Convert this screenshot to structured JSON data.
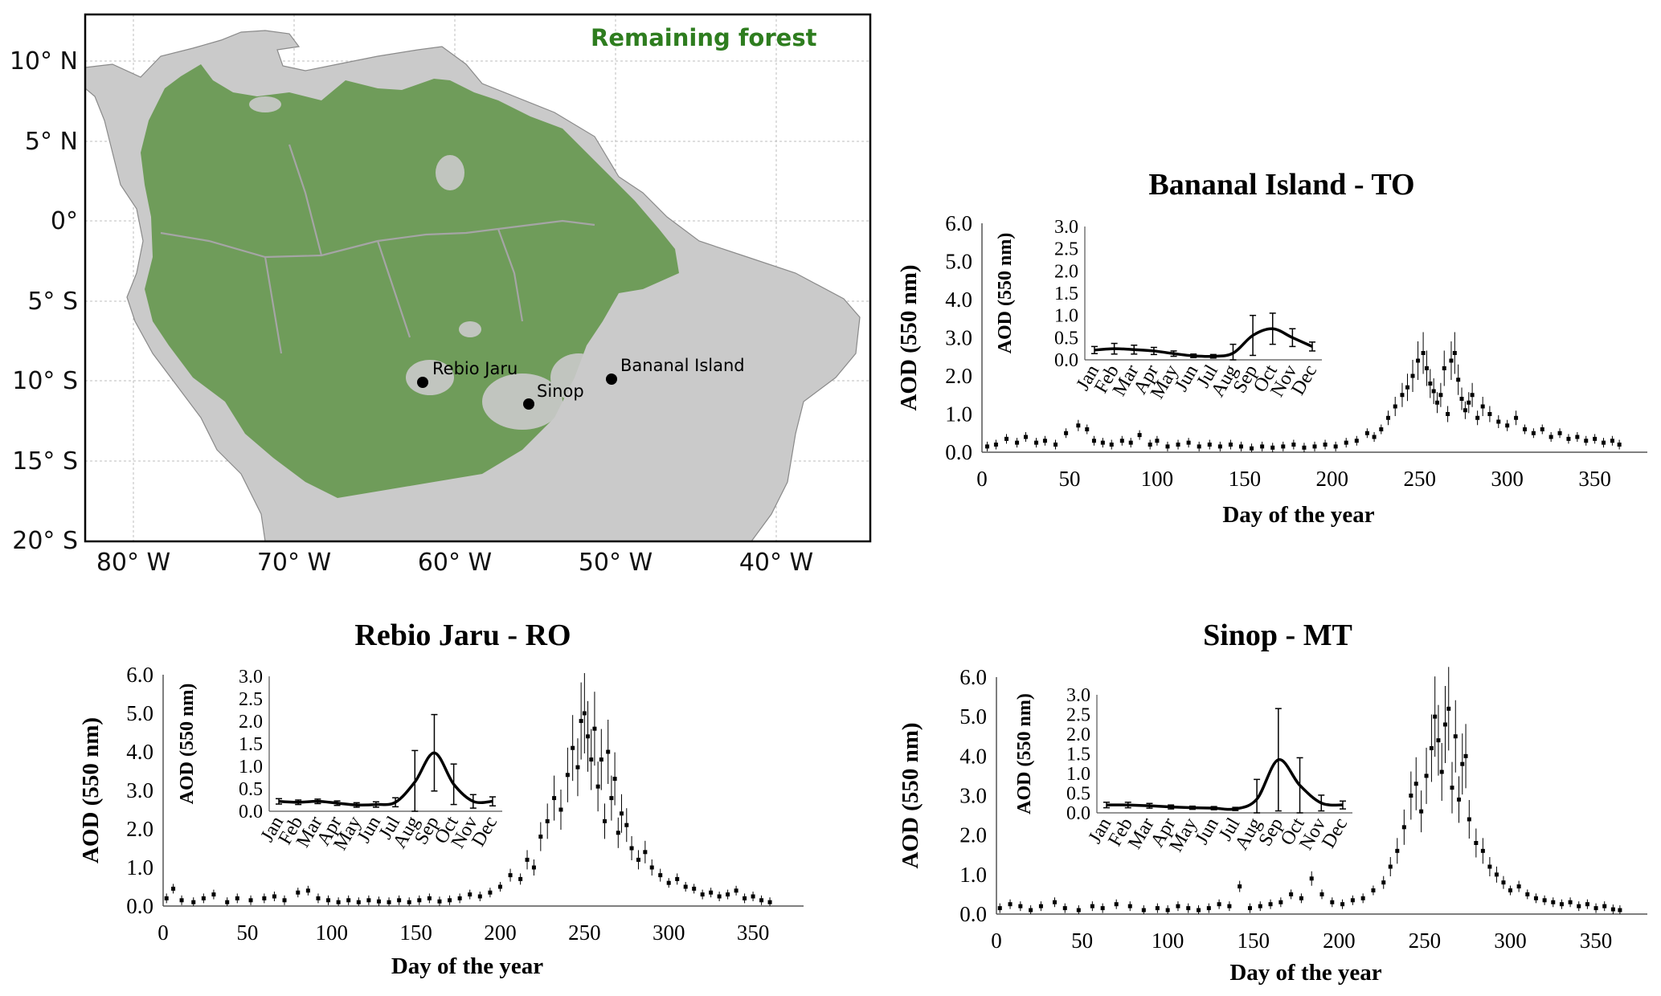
{
  "map": {
    "legend": "Remaining forest",
    "lat_labels": [
      "10° N",
      "5° N",
      "0°",
      "5° S",
      "10° S",
      "15° S",
      "20° S"
    ],
    "lon_labels": [
      "80° W",
      "70° W",
      "60° W",
      "50° W",
      "40° W"
    ],
    "sites": [
      {
        "name": "Rebio Jaru",
        "lon": -61.9,
        "lat": -10.1
      },
      {
        "name": "Sinop",
        "lon": -55.3,
        "lat": -11.4
      },
      {
        "name": "Bananal Island",
        "lon": -50.2,
        "lat": -9.8
      }
    ],
    "colors": {
      "forest": "#6f9c5a",
      "land": "#cacaca",
      "legend_text": "#2e7d1f",
      "rivers": "#9a9a9a"
    }
  },
  "chart_data": [
    {
      "id": "bananal",
      "type": "scatter",
      "title": "Bananal Island - TO",
      "xlabel": "Day of the year",
      "ylabel": "AOD (550 nm)",
      "xlim": [
        0,
        380
      ],
      "ylim": [
        0,
        6
      ],
      "xticks": [
        "0",
        "50",
        "100",
        "150",
        "200",
        "250",
        "300",
        "350"
      ],
      "yticks": [
        "0.0",
        "1.0",
        "2.0",
        "3.0",
        "4.0",
        "5.0",
        "6.0"
      ],
      "series": [
        {
          "x": [
            3,
            8,
            14,
            20,
            25,
            31,
            36,
            42,
            48,
            55,
            60,
            64,
            69,
            74,
            80,
            85,
            90,
            96,
            100,
            106,
            112,
            118,
            124,
            130,
            136,
            142,
            148,
            154,
            160,
            166,
            172,
            178,
            184,
            190,
            196,
            202,
            208,
            214,
            220,
            224,
            228,
            232,
            236,
            240,
            243,
            246,
            249,
            252,
            254,
            256,
            258,
            260,
            262,
            264,
            266,
            268,
            270,
            272,
            274,
            276,
            278,
            280,
            283,
            286,
            290,
            295,
            300,
            305,
            310,
            315,
            320,
            325,
            330,
            335,
            340,
            345,
            350,
            355,
            360,
            364
          ],
          "y": [
            0.15,
            0.2,
            0.35,
            0.25,
            0.4,
            0.25,
            0.3,
            0.2,
            0.5,
            0.7,
            0.6,
            0.3,
            0.25,
            0.2,
            0.3,
            0.25,
            0.45,
            0.2,
            0.3,
            0.15,
            0.2,
            0.25,
            0.15,
            0.2,
            0.15,
            0.2,
            0.15,
            0.1,
            0.15,
            0.12,
            0.15,
            0.2,
            0.12,
            0.15,
            0.2,
            0.15,
            0.25,
            0.3,
            0.5,
            0.4,
            0.6,
            0.9,
            1.2,
            1.5,
            1.7,
            2.0,
            2.4,
            2.6,
            2.2,
            1.8,
            1.6,
            1.3,
            1.5,
            2.2,
            1.0,
            2.4,
            2.6,
            1.9,
            1.4,
            1.1,
            1.3,
            1.5,
            0.9,
            1.2,
            1.0,
            0.8,
            0.7,
            0.9,
            0.6,
            0.5,
            0.6,
            0.4,
            0.5,
            0.35,
            0.4,
            0.3,
            0.35,
            0.25,
            0.3,
            0.2
          ]
        }
      ],
      "inset": {
        "ylabel": "AOD (550 nm)",
        "ylim": [
          0,
          3
        ],
        "yticks": [
          "0.0",
          "0.5",
          "1.0",
          "1.5",
          "2.0",
          "2.5",
          "3.0"
        ],
        "categories": [
          "Jan",
          "Feb",
          "Mar",
          "Apr",
          "May",
          "Jun",
          "Jul",
          "Aug",
          "Sep",
          "Oct",
          "Nov",
          "Dec"
        ],
        "values": [
          0.22,
          0.25,
          0.23,
          0.2,
          0.14,
          0.09,
          0.08,
          0.15,
          0.55,
          0.7,
          0.5,
          0.3
        ],
        "errors": [
          0.08,
          0.12,
          0.1,
          0.08,
          0.06,
          0.04,
          0.04,
          0.2,
          0.45,
          0.35,
          0.2,
          0.1
        ]
      }
    },
    {
      "id": "rebio",
      "type": "scatter",
      "title": "Rebio Jaru - RO",
      "xlabel": "Day of the year",
      "ylabel": "AOD (550 nm)",
      "xlim": [
        0,
        380
      ],
      "ylim": [
        0,
        6
      ],
      "xticks": [
        "0",
        "50",
        "100",
        "150",
        "200",
        "250",
        "300",
        "350"
      ],
      "yticks": [
        "0.0",
        "1.0",
        "2.0",
        "3.0",
        "4.0",
        "5.0",
        "6.0"
      ],
      "series": [
        {
          "x": [
            2,
            6,
            11,
            18,
            24,
            30,
            38,
            44,
            52,
            60,
            66,
            72,
            80,
            86,
            92,
            98,
            104,
            110,
            116,
            122,
            128,
            134,
            140,
            146,
            152,
            158,
            164,
            170,
            176,
            182,
            188,
            194,
            200,
            206,
            212,
            216,
            220,
            224,
            228,
            232,
            236,
            240,
            243,
            246,
            248,
            250,
            252,
            254,
            256,
            258,
            260,
            262,
            264,
            266,
            268,
            270,
            272,
            275,
            278,
            282,
            286,
            290,
            295,
            300,
            305,
            310,
            315,
            320,
            325,
            330,
            335,
            340,
            345,
            350,
            355,
            360
          ],
          "y": [
            0.2,
            0.45,
            0.15,
            0.1,
            0.2,
            0.3,
            0.1,
            0.2,
            0.15,
            0.2,
            0.25,
            0.15,
            0.35,
            0.4,
            0.2,
            0.15,
            0.1,
            0.15,
            0.1,
            0.15,
            0.12,
            0.1,
            0.15,
            0.1,
            0.15,
            0.2,
            0.12,
            0.15,
            0.2,
            0.3,
            0.25,
            0.35,
            0.5,
            0.8,
            0.7,
            1.2,
            1.0,
            1.8,
            2.2,
            2.8,
            2.5,
            3.4,
            4.1,
            3.6,
            4.8,
            5.0,
            4.4,
            3.8,
            4.6,
            3.1,
            3.8,
            2.2,
            4.0,
            2.8,
            3.3,
            1.9,
            2.4,
            2.1,
            1.5,
            1.2,
            1.4,
            1.0,
            0.8,
            0.6,
            0.7,
            0.5,
            0.45,
            0.3,
            0.35,
            0.25,
            0.3,
            0.4,
            0.2,
            0.25,
            0.15,
            0.1
          ]
        }
      ],
      "inset": {
        "ylabel": "AOD (550 nm)",
        "ylim": [
          0,
          3
        ],
        "yticks": [
          "0.0",
          "0.5",
          "1.0",
          "1.5",
          "2.0",
          "2.5",
          "3.0"
        ],
        "categories": [
          "Jan",
          "Feb",
          "Mar",
          "Apr",
          "May",
          "Jun",
          "Jul",
          "Aug",
          "Sep",
          "Oct",
          "Nov",
          "Dec"
        ],
        "values": [
          0.22,
          0.2,
          0.22,
          0.18,
          0.14,
          0.15,
          0.2,
          0.65,
          1.3,
          0.6,
          0.22,
          0.22
        ],
        "errors": [
          0.06,
          0.05,
          0.05,
          0.05,
          0.05,
          0.06,
          0.1,
          0.7,
          0.85,
          0.45,
          0.15,
          0.1
        ]
      }
    },
    {
      "id": "sinop",
      "type": "scatter",
      "title": "Sinop - MT",
      "xlabel": "Day of the year",
      "ylabel": "AOD (550 nm)",
      "xlim": [
        0,
        380
      ],
      "ylim": [
        0,
        6
      ],
      "xticks": [
        "0",
        "50",
        "100",
        "150",
        "200",
        "250",
        "300",
        "350"
      ],
      "yticks": [
        "0.0",
        "1.0",
        "2.0",
        "3.0",
        "4.0",
        "5.0",
        "6.0"
      ],
      "series": [
        {
          "x": [
            2,
            8,
            14,
            20,
            26,
            34,
            40,
            48,
            56,
            62,
            70,
            78,
            86,
            94,
            100,
            106,
            112,
            118,
            124,
            130,
            136,
            142,
            148,
            154,
            160,
            166,
            172,
            178,
            184,
            190,
            196,
            202,
            208,
            214,
            220,
            226,
            230,
            234,
            238,
            242,
            245,
            248,
            251,
            254,
            256,
            258,
            260,
            262,
            264,
            266,
            268,
            270,
            272,
            274,
            276,
            280,
            284,
            288,
            292,
            296,
            300,
            305,
            310,
            315,
            320,
            325,
            330,
            335,
            340,
            345,
            350,
            355,
            360,
            364
          ],
          "y": [
            0.15,
            0.25,
            0.2,
            0.1,
            0.2,
            0.3,
            0.15,
            0.1,
            0.2,
            0.15,
            0.25,
            0.2,
            0.1,
            0.15,
            0.1,
            0.2,
            0.15,
            0.1,
            0.15,
            0.25,
            0.2,
            0.7,
            0.15,
            0.2,
            0.25,
            0.3,
            0.5,
            0.4,
            0.9,
            0.5,
            0.3,
            0.25,
            0.35,
            0.4,
            0.6,
            0.8,
            1.2,
            1.6,
            2.2,
            3.0,
            3.3,
            2.6,
            3.5,
            4.2,
            5.0,
            4.4,
            3.6,
            4.8,
            5.2,
            3.2,
            4.5,
            2.9,
            3.8,
            4.0,
            2.4,
            1.8,
            1.6,
            1.2,
            1.0,
            0.8,
            0.6,
            0.7,
            0.5,
            0.4,
            0.35,
            0.3,
            0.25,
            0.3,
            0.2,
            0.25,
            0.15,
            0.2,
            0.12,
            0.1
          ]
        }
      ],
      "inset": {
        "ylabel": "AOD (550 nm)",
        "ylim": [
          0,
          3
        ],
        "yticks": [
          "0.0",
          "0.5",
          "1.0",
          "1.5",
          "2.0",
          "2.5",
          "3.0"
        ],
        "categories": [
          "Jan",
          "Feb",
          "Mar",
          "Apr",
          "May",
          "Jun",
          "Jul",
          "Aug",
          "Sep",
          "Oct",
          "Nov",
          "Dec"
        ],
        "values": [
          0.2,
          0.2,
          0.18,
          0.15,
          0.13,
          0.12,
          0.1,
          0.35,
          1.35,
          0.7,
          0.25,
          0.2
        ],
        "errors": [
          0.07,
          0.07,
          0.06,
          0.05,
          0.04,
          0.04,
          0.04,
          0.5,
          1.3,
          0.7,
          0.2,
          0.1
        ]
      }
    }
  ]
}
